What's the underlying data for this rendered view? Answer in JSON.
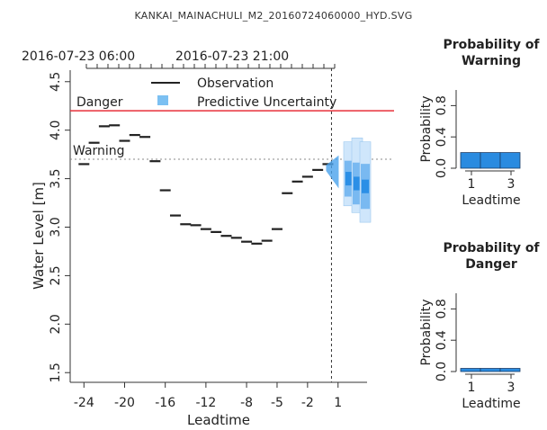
{
  "window": {
    "title": "KANKAI_MAINACHULI_M2_20160724060000_HYD.SVG"
  },
  "chart_data": [
    {
      "type": "line",
      "xlabel": "Leadtime",
      "ylabel": "Water Level [m]",
      "xlim": [
        -25,
        3.5
      ],
      "ylim": [
        1.5,
        4.5
      ],
      "x_ticks": [
        -24,
        -20,
        -16,
        -12,
        -8,
        -5,
        -2,
        1
      ],
      "y_ticks": [
        "1.5",
        "2.0",
        "2.5",
        "3.0",
        "3.5",
        "4.0",
        "4.5"
      ],
      "top_axis_labels": [
        "2016-07-23 06:00",
        "2016-07-23 21:00"
      ],
      "legend": {
        "placement": "top",
        "entries": [
          "Observation",
          "Predictive Uncertainty"
        ]
      },
      "thresholds": [
        {
          "name": "Danger",
          "value": 4.2,
          "color": "#e8303a"
        },
        {
          "name": "Warning",
          "value": 3.7,
          "color": "#888888"
        }
      ],
      "now_leadtime": 0,
      "observations": [
        {
          "x": -24,
          "y": 3.65
        },
        {
          "x": -23,
          "y": 3.87
        },
        {
          "x": -22,
          "y": 4.04
        },
        {
          "x": -21,
          "y": 4.05
        },
        {
          "x": -20,
          "y": 3.89
        },
        {
          "x": -19,
          "y": 3.95
        },
        {
          "x": -18,
          "y": 3.93
        },
        {
          "x": -17,
          "y": 3.68
        },
        {
          "x": -16,
          "y": 3.38
        },
        {
          "x": -15,
          "y": 3.12
        },
        {
          "x": -14,
          "y": 3.03
        },
        {
          "x": -13,
          "y": 3.02
        },
        {
          "x": -12,
          "y": 2.98
        },
        {
          "x": -11,
          "y": 2.95
        },
        {
          "x": -10,
          "y": 2.91
        },
        {
          "x": -9,
          "y": 2.89
        },
        {
          "x": -8,
          "y": 2.85
        },
        {
          "x": -7,
          "y": 2.83
        },
        {
          "x": -6,
          "y": 2.86
        },
        {
          "x": -5,
          "y": 2.98
        },
        {
          "x": -4,
          "y": 3.35
        },
        {
          "x": -3,
          "y": 3.47
        },
        {
          "x": -2,
          "y": 3.52
        },
        {
          "x": -1,
          "y": 3.59
        },
        {
          "x": 0,
          "y": 3.65
        }
      ],
      "uncertainty": [
        {
          "x": 1,
          "low": 3.22,
          "high": 3.88,
          "median": 3.5
        },
        {
          "x": 2,
          "low": 3.15,
          "high": 3.92,
          "median": 3.45
        },
        {
          "x": 3,
          "low": 3.05,
          "high": 3.88,
          "median": 3.42
        }
      ],
      "colors": {
        "observation": "#222222",
        "uncertainty": "#2b8fe6",
        "uncertainty_light": "#cfe6fb"
      }
    },
    {
      "type": "bar",
      "title": "Probability of Warning",
      "xlabel": "Leadtime",
      "ylabel": "Probability",
      "ylim": [
        0,
        1
      ],
      "y_ticks": [
        "0.0",
        "0.4",
        "0.8"
      ],
      "x_ticks": [
        "1",
        "3"
      ],
      "categories": [
        1,
        2,
        3
      ],
      "values": [
        0.2,
        0.2,
        0.2
      ],
      "color": "#2a8be0"
    },
    {
      "type": "bar",
      "title": "Probability of Danger",
      "xlabel": "Leadtime",
      "ylabel": "Probability",
      "ylim": [
        0,
        1
      ],
      "y_ticks": [
        "0.0",
        "0.4",
        "0.8"
      ],
      "x_ticks": [
        "1",
        "3"
      ],
      "categories": [
        1,
        2,
        3
      ],
      "values": [
        0.04,
        0.04,
        0.04
      ],
      "color": "#2a8be0"
    }
  ]
}
